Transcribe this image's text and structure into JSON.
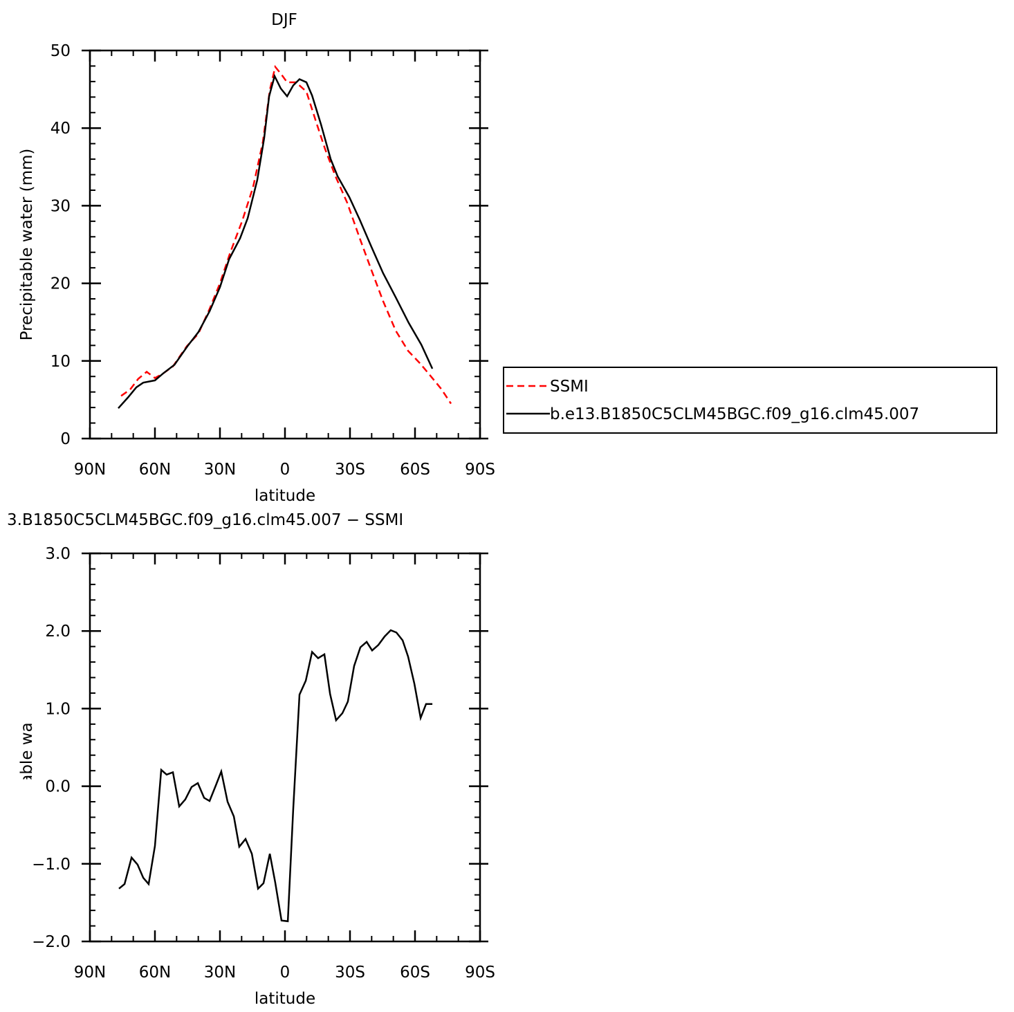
{
  "chart_data": [
    {
      "type": "line",
      "title": "DJF",
      "xlabel": "latitude",
      "ylabel": "Precipitable water (mm)",
      "xlim": [
        90,
        -90
      ],
      "xticks": [
        {
          "value": 90,
          "label": "90N"
        },
        {
          "value": 60,
          "label": "60N"
        },
        {
          "value": 30,
          "label": "30N"
        },
        0,
        {
          "value": -30,
          "label": "30S"
        },
        {
          "value": -60,
          "label": "60S"
        },
        {
          "value": -90,
          "label": "90S"
        }
      ],
      "ylim": [
        0,
        50
      ],
      "yticks": [
        0,
        10,
        20,
        30,
        40,
        50
      ],
      "legend": "outside-right",
      "series": [
        {
          "name": "SSMI",
          "color": "#ff0000",
          "linestyle": "dashed",
          "x": [
            75.6,
            71.5,
            67.7,
            63.8,
            60,
            56.2,
            51.7,
            45.3,
            40,
            34.8,
            30,
            25.2,
            19.8,
            14.7,
            10.2,
            7,
            4.5,
            1.6,
            -1,
            -5.1,
            -9.9,
            -14.7,
            -18.5,
            -23.3,
            -28.7,
            -34.5,
            -39.9,
            -45.3,
            -51.1,
            -56.8,
            -62.3,
            -67.7,
            -72.1,
            -76.6
          ],
          "values": [
            5.5,
            6.3,
            7.7,
            8.6,
            7.8,
            8.4,
            9.3,
            11.9,
            13.5,
            16.7,
            20,
            24,
            28,
            32.4,
            38.2,
            44.9,
            47.9,
            46.9,
            45.9,
            45.9,
            44.7,
            40.5,
            37.3,
            33.8,
            30.4,
            25.8,
            21.7,
            17.7,
            13.9,
            11.3,
            9.7,
            7.9,
            6.4,
            4.5
          ]
        },
        {
          "name": "b.e13.B1850C5CLM45BGC.f09_g16.clm45.007",
          "color": "#000000",
          "linestyle": "solid",
          "x": [
            76.9,
            72.4,
            68.6,
            65.4,
            60,
            56.2,
            51,
            45,
            40,
            34.8,
            30,
            25.8,
            20.7,
            17.2,
            12.8,
            9.6,
            7.3,
            4.8,
            1.9,
            -1,
            -3.8,
            -6.7,
            -9.9,
            -12.5,
            -16.6,
            -21.1,
            -24.3,
            -29.7,
            -34.5,
            -39.9,
            -45.3,
            -51.1,
            -57.1,
            -62.9,
            -68
          ],
          "values": [
            3.9,
            5.3,
            6.6,
            7.2,
            7.5,
            8.4,
            9.5,
            11.9,
            13.7,
            16.4,
            19.5,
            23.1,
            25.8,
            28.4,
            33.3,
            38.7,
            44.1,
            46.7,
            45.1,
            44.1,
            45.5,
            46.3,
            45.9,
            44.2,
            40.5,
            36,
            33.8,
            31.1,
            28.2,
            24.7,
            21.3,
            18.2,
            14.9,
            12.1,
            9.0
          ]
        }
      ]
    },
    {
      "type": "line",
      "title": "3.B1850C5CLM45BGC.f09_g16.clm45.007 − SSMI",
      "xlabel": "latitude",
      "ylabel": "Precipitable water (mm)",
      "xlim": [
        90,
        -90
      ],
      "xticks": [
        {
          "value": 90,
          "label": "90N"
        },
        {
          "value": 60,
          "label": "60N"
        },
        {
          "value": 30,
          "label": "30N"
        },
        0,
        {
          "value": -30,
          "label": "30S"
        },
        {
          "value": -60,
          "label": "60S"
        },
        {
          "value": -90,
          "label": "90S"
        }
      ],
      "ylim": [
        -2,
        3
      ],
      "yticks": [
        {
          "value": -2,
          "label": "−2.0"
        },
        {
          "value": -1,
          "label": "−1.0"
        },
        {
          "value": 0,
          "label": "0.0"
        },
        {
          "value": 1,
          "label": "1.0"
        },
        {
          "value": 2,
          "label": "2.0"
        },
        {
          "value": 3,
          "label": "3.0"
        }
      ],
      "series": [
        {
          "color": "#000000",
          "linestyle": "solid",
          "x": [
            76.6,
            74,
            70.8,
            68,
            65.4,
            62.9,
            60,
            57.1,
            54.6,
            51.7,
            48.8,
            46,
            43.1,
            40.2,
            37.3,
            34.8,
            31.9,
            29.4,
            26.5,
            23.6,
            21.1,
            18.2,
            15.3,
            12.4,
            9.9,
            7,
            4.5,
            1.6,
            -1.3,
            -3.8,
            -6.7,
            -9.6,
            -12.5,
            -15.3,
            -18.2,
            -20.8,
            -23.6,
            -26.5,
            -29,
            -31.9,
            -34.8,
            -37.7,
            -40.2,
            -43.1,
            -46,
            -48.8,
            -51.4,
            -54.3,
            -56.8,
            -59.7,
            -62.6,
            -65.1,
            -68
          ],
          "values": [
            -1.32,
            -1.26,
            -0.92,
            -1.01,
            -1.18,
            -1.26,
            -0.77,
            0.21,
            0.15,
            0.18,
            -0.26,
            -0.17,
            -0.01,
            0.04,
            -0.15,
            -0.19,
            0.01,
            0.19,
            -0.2,
            -0.39,
            -0.78,
            -0.68,
            -0.87,
            -1.32,
            -1.25,
            -0.87,
            -1.24,
            -1.73,
            -1.74,
            -0.3,
            1.18,
            1.36,
            1.73,
            1.65,
            1.7,
            1.19,
            0.85,
            0.94,
            1.09,
            1.55,
            1.79,
            1.86,
            1.75,
            1.82,
            1.93,
            2.01,
            1.98,
            1.88,
            1.67,
            1.32,
            0.88,
            1.06,
            1.06
          ]
        }
      ]
    }
  ]
}
